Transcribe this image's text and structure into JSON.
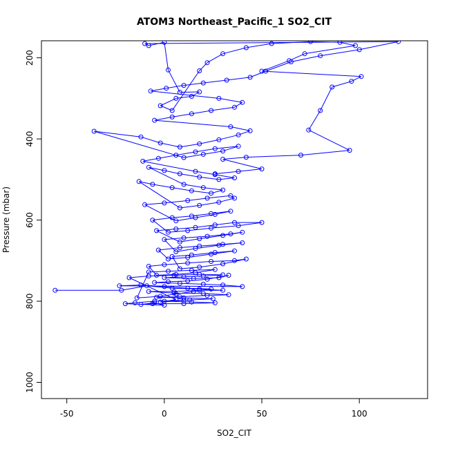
{
  "chart_data": {
    "type": "line",
    "title": "ATOM3 Northeast_Pacific_1 SO2_CIT",
    "xlabel": "SO2_CIT",
    "ylabel": "Pressure (mbar)",
    "xlim": [
      -63,
      135
    ],
    "ylim": [
      1040,
      158
    ],
    "y_reversed": true,
    "xticks": [
      -50,
      0,
      50,
      100
    ],
    "yticks": [
      200,
      400,
      600,
      800,
      1000
    ],
    "grid": false,
    "legend": "none",
    "series": [
      {
        "color": "#0000ff",
        "marker": "open-circle",
        "points": [
          [
            -56,
            773
          ],
          [
            -22,
            773
          ],
          [
            -9,
            762
          ],
          [
            4,
            768
          ],
          [
            18,
            770
          ],
          [
            30,
            773
          ],
          [
            18,
            773
          ],
          [
            5,
            776
          ],
          [
            -8,
            776
          ],
          [
            5,
            780
          ],
          [
            20,
            781
          ],
          [
            33,
            784
          ],
          [
            22,
            786
          ],
          [
            8,
            789
          ],
          [
            -4,
            790
          ],
          [
            10,
            792
          ],
          [
            25,
            794
          ],
          [
            13,
            797
          ],
          [
            0,
            800
          ],
          [
            14,
            802
          ],
          [
            26,
            804
          ],
          [
            10,
            806
          ],
          [
            -6,
            806
          ],
          [
            -12,
            808
          ],
          [
            -5,
            804
          ],
          [
            0,
            810
          ],
          [
            -20,
            806
          ],
          [
            -15,
            804
          ],
          [
            -5,
            800
          ],
          [
            10,
            798
          ],
          [
            -2,
            802
          ],
          [
            6,
            796
          ],
          [
            -18,
            742
          ],
          [
            -8,
            738
          ],
          [
            5,
            736
          ],
          [
            18,
            734
          ],
          [
            30,
            735
          ],
          [
            20,
            738
          ],
          [
            10,
            740
          ],
          [
            0,
            742
          ],
          [
            15,
            744
          ],
          [
            28,
            742
          ],
          [
            33,
            736
          ],
          [
            22,
            746
          ],
          [
            12,
            750
          ],
          [
            2,
            752
          ],
          [
            -5,
            754
          ],
          [
            8,
            756
          ],
          [
            20,
            758
          ],
          [
            30,
            760
          ],
          [
            40,
            764
          ],
          [
            -23,
            762
          ],
          [
            -12,
            760
          ],
          [
            0,
            764
          ],
          [
            12,
            768
          ],
          [
            24,
            770
          ],
          [
            15,
            776
          ],
          [
            6,
            782
          ],
          [
            -2,
            788
          ],
          [
            -14,
            792
          ],
          [
            -8,
            728
          ],
          [
            2,
            726
          ],
          [
            14,
            724
          ],
          [
            26,
            722
          ],
          [
            16,
            730
          ],
          [
            6,
            734
          ],
          [
            -4,
            736
          ],
          [
            -8,
            714
          ],
          [
            0,
            710
          ],
          [
            12,
            706
          ],
          [
            24,
            702
          ],
          [
            36,
            700
          ],
          [
            42,
            696
          ],
          [
            30,
            708
          ],
          [
            18,
            716
          ],
          [
            8,
            720
          ],
          [
            4,
            690
          ],
          [
            14,
            686
          ],
          [
            26,
            680
          ],
          [
            36,
            676
          ],
          [
            24,
            684
          ],
          [
            12,
            692
          ],
          [
            2,
            696
          ],
          [
            -3,
            674
          ],
          [
            8,
            668
          ],
          [
            18,
            664
          ],
          [
            30,
            660
          ],
          [
            40,
            656
          ],
          [
            28,
            662
          ],
          [
            16,
            670
          ],
          [
            6,
            678
          ],
          [
            0,
            648
          ],
          [
            10,
            644
          ],
          [
            22,
            640
          ],
          [
            34,
            634
          ],
          [
            40,
            630
          ],
          [
            30,
            638
          ],
          [
            18,
            646
          ],
          [
            8,
            654
          ],
          [
            -4,
            626
          ],
          [
            6,
            622
          ],
          [
            16,
            618
          ],
          [
            26,
            612
          ],
          [
            36,
            606
          ],
          [
            50,
            606
          ],
          [
            38,
            614
          ],
          [
            24,
            620
          ],
          [
            12,
            626
          ],
          [
            2,
            630
          ],
          [
            -6,
            600
          ],
          [
            4,
            594
          ],
          [
            14,
            590
          ],
          [
            24,
            584
          ],
          [
            34,
            578
          ],
          [
            26,
            586
          ],
          [
            16,
            594
          ],
          [
            6,
            602
          ],
          [
            -10,
            562
          ],
          [
            0,
            558
          ],
          [
            12,
            552
          ],
          [
            22,
            546
          ],
          [
            34,
            540
          ],
          [
            36,
            546
          ],
          [
            28,
            556
          ],
          [
            18,
            564
          ],
          [
            8,
            570
          ],
          [
            -13,
            505
          ],
          [
            -6,
            512
          ],
          [
            4,
            520
          ],
          [
            14,
            528
          ],
          [
            24,
            534
          ],
          [
            30,
            526
          ],
          [
            20,
            520
          ],
          [
            10,
            512
          ],
          [
            -8,
            470
          ],
          [
            0,
            478
          ],
          [
            8,
            486
          ],
          [
            18,
            494
          ],
          [
            28,
            500
          ],
          [
            36,
            496
          ],
          [
            26,
            488
          ],
          [
            16,
            480
          ],
          [
            -11,
            455
          ],
          [
            -3,
            448
          ],
          [
            6,
            440
          ],
          [
            16,
            432
          ],
          [
            26,
            424
          ],
          [
            38,
            418
          ],
          [
            30,
            430
          ],
          [
            20,
            438
          ],
          [
            10,
            446
          ],
          [
            -36,
            381
          ],
          [
            -12,
            395
          ],
          [
            -2,
            410
          ],
          [
            8,
            420
          ],
          [
            18,
            412
          ],
          [
            28,
            402
          ],
          [
            38,
            390
          ],
          [
            44,
            380
          ],
          [
            34,
            370
          ],
          [
            -5,
            354
          ],
          [
            4,
            346
          ],
          [
            14,
            338
          ],
          [
            24,
            330
          ],
          [
            36,
            322
          ],
          [
            40,
            310
          ],
          [
            28,
            300
          ],
          [
            -7,
            282
          ],
          [
            1,
            275
          ],
          [
            10,
            268
          ],
          [
            20,
            262
          ],
          [
            32,
            255
          ],
          [
            44,
            248
          ],
          [
            52,
            233
          ],
          [
            65,
            210
          ],
          [
            80,
            195
          ],
          [
            100,
            180
          ],
          [
            120,
            160
          ],
          [
            -10,
            165
          ],
          [
            -8,
            170
          ],
          [
            0,
            162
          ],
          [
            2,
            230
          ],
          [
            8,
            285
          ],
          [
            18,
            284
          ],
          [
            14,
            295
          ],
          [
            6,
            300
          ],
          [
            -2,
            318
          ],
          [
            4,
            330
          ],
          [
            18,
            232
          ],
          [
            22,
            212
          ],
          [
            30,
            190
          ],
          [
            42,
            175
          ],
          [
            55,
            165
          ],
          [
            75,
            160
          ],
          [
            90,
            162
          ],
          [
            98,
            170
          ],
          [
            72,
            190
          ],
          [
            64,
            207
          ],
          [
            50,
            233
          ],
          [
            101,
            246
          ],
          [
            96,
            258
          ],
          [
            86,
            272
          ],
          [
            80,
            330
          ],
          [
            74,
            378
          ],
          [
            95,
            428
          ],
          [
            70,
            440
          ],
          [
            42,
            445
          ],
          [
            30,
            450
          ],
          [
            50,
            474
          ],
          [
            38,
            480
          ],
          [
            26,
            486
          ]
        ]
      }
    ]
  }
}
